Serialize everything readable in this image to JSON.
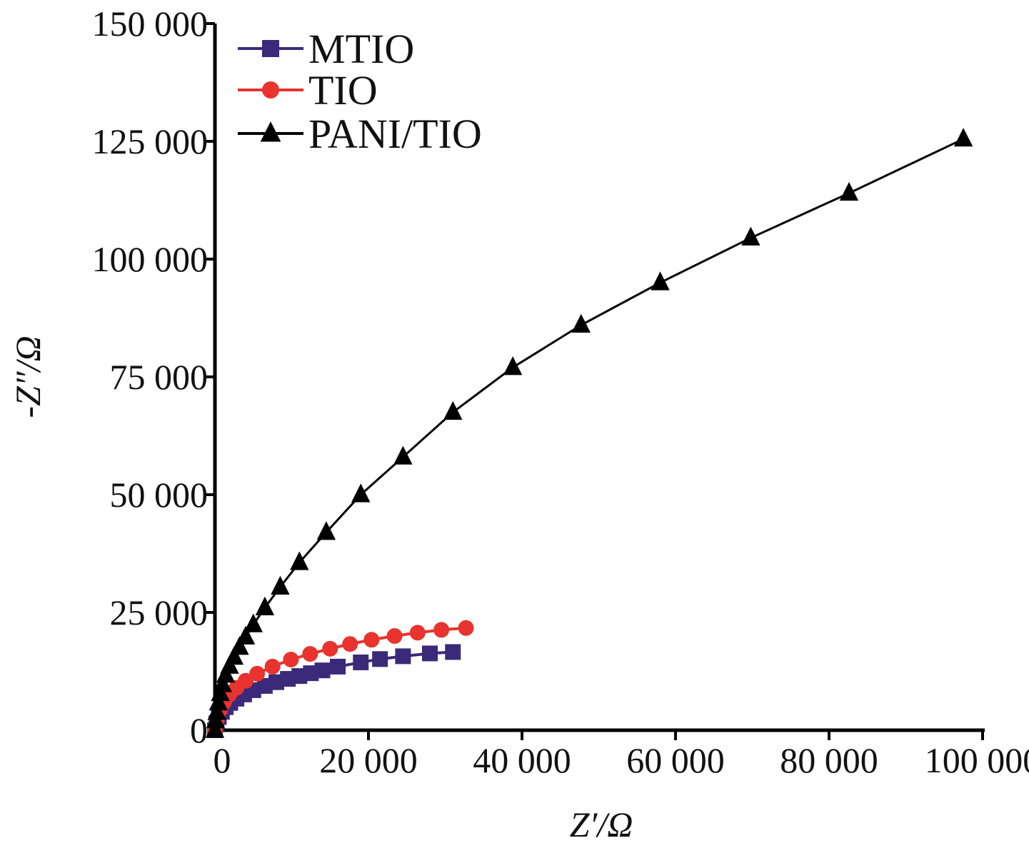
{
  "chart_data": {
    "type": "scatter",
    "title": "",
    "xlabel": "Z′/Ω",
    "ylabel": "-Z″/Ω",
    "xlim": [
      0,
      100000
    ],
    "ylim": [
      0,
      150000
    ],
    "x_ticks": [
      0,
      20000,
      40000,
      60000,
      80000,
      100000
    ],
    "x_tick_labels": [
      "0",
      "20 000",
      "40 000",
      "60 000",
      "80 000",
      "100 000"
    ],
    "y_ticks": [
      0,
      25000,
      50000,
      75000,
      100000,
      125000,
      150000
    ],
    "y_tick_labels": [
      "0",
      "25 000",
      "50 000",
      "75 000",
      "100 000",
      "125 000",
      "150 000"
    ],
    "grid": false,
    "legend_position": "top-left",
    "series": [
      {
        "name": "MTIO",
        "color": "#3b2a7a",
        "marker": "square",
        "x": [
          0,
          200,
          500,
          900,
          1400,
          2000,
          2800,
          3800,
          5000,
          6500,
          8000,
          9500,
          11000,
          12500,
          14000,
          16000,
          19000,
          21500,
          24500,
          28000,
          31000
        ],
        "y": [
          0,
          1500,
          2800,
          3900,
          4900,
          5800,
          6700,
          7600,
          8500,
          9400,
          10200,
          10900,
          11500,
          12100,
          12700,
          13500,
          14400,
          15100,
          15700,
          16300,
          16600
        ]
      },
      {
        "name": "TIO",
        "color": "#e8332e",
        "marker": "circle",
        "x": [
          0,
          300,
          700,
          1200,
          1900,
          2800,
          4000,
          5500,
          7500,
          9900,
          12400,
          15000,
          17600,
          20400,
          23400,
          26400,
          29500,
          32700
        ],
        "y": [
          0,
          2500,
          4400,
          6000,
          7600,
          9000,
          10500,
          12000,
          13500,
          15000,
          16200,
          17300,
          18300,
          19200,
          20000,
          20700,
          21300,
          21700
        ]
      },
      {
        "name": "PANI/TIO",
        "color": "#000000",
        "marker": "triangle",
        "x": [
          0,
          100,
          250,
          450,
          700,
          1000,
          1400,
          1900,
          2500,
          3200,
          4000,
          5000,
          6500,
          8500,
          11000,
          14500,
          19000,
          24500,
          31000,
          38800,
          47700,
          58000,
          69800,
          82600,
          97500
        ],
        "y": [
          0,
          2000,
          3800,
          5800,
          7800,
          9700,
          11700,
          13600,
          15500,
          17600,
          19800,
          22400,
          26000,
          30400,
          35600,
          42000,
          50000,
          58000,
          67500,
          77000,
          86000,
          95000,
          104500,
          114000,
          125500
        ]
      }
    ]
  }
}
